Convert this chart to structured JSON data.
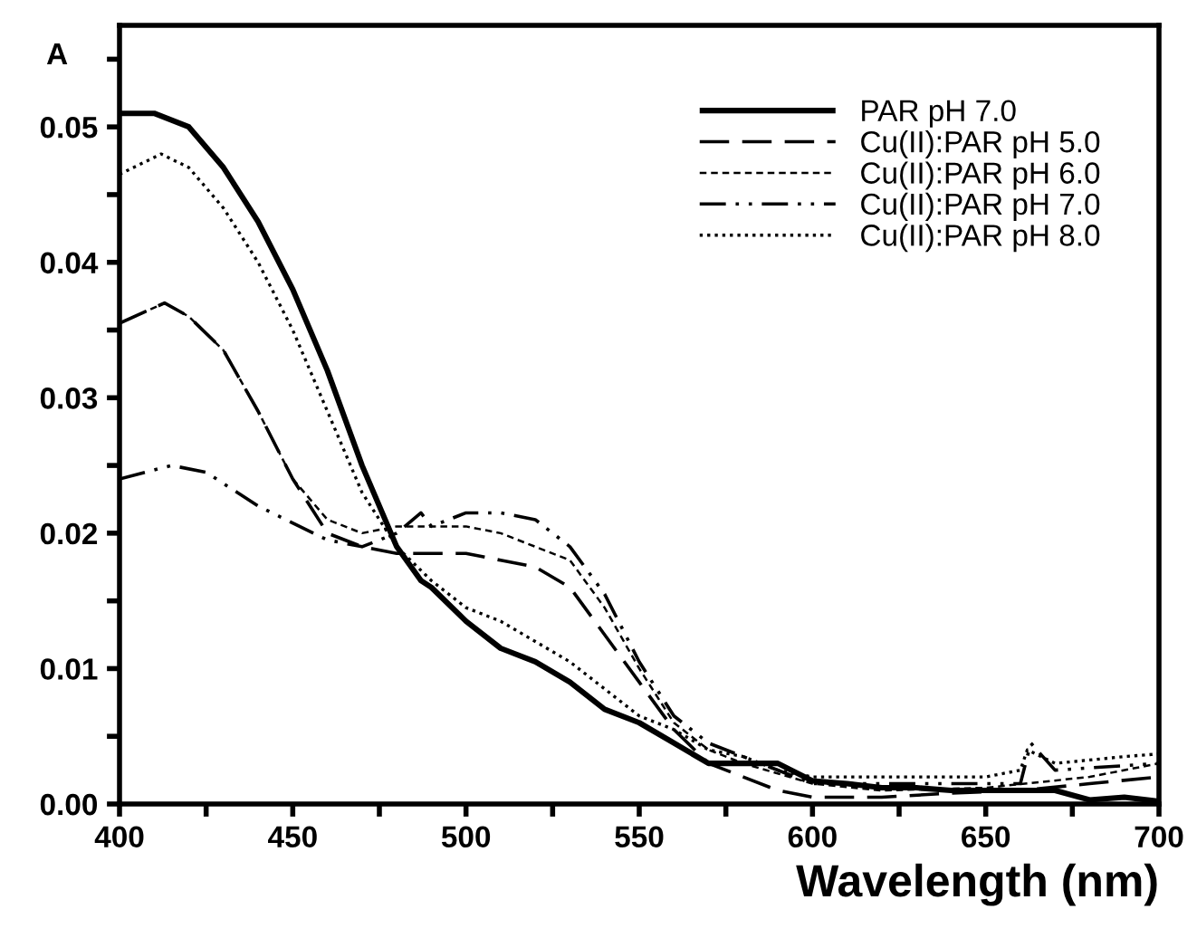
{
  "chart_data": {
    "type": "line",
    "xlabel": "Wavelength (nm)",
    "ylabel": "A",
    "xlim": [
      400,
      700
    ],
    "ylim": [
      0,
      0.0575
    ],
    "xticks": [
      400,
      {
        "value": 425,
        "label": null
      },
      450,
      {
        "value": 475,
        "label": null
      },
      500,
      {
        "value": 525,
        "label": null
      },
      550,
      {
        "value": 575,
        "label": null
      },
      600,
      {
        "value": 625,
        "label": null
      },
      650,
      {
        "value": 675,
        "label": null
      },
      700
    ],
    "yticks": [
      {
        "value": 0,
        "label": "0.00"
      },
      {
        "value": 0.005,
        "label": null
      },
      {
        "value": 0.01,
        "label": "0.01"
      },
      {
        "value": 0.015,
        "label": null
      },
      {
        "value": 0.02,
        "label": "0.02"
      },
      {
        "value": 0.025,
        "label": null
      },
      {
        "value": 0.03,
        "label": "0.03"
      },
      {
        "value": 0.035,
        "label": null
      },
      {
        "value": 0.04,
        "label": "0.04"
      },
      {
        "value": 0.045,
        "label": null
      },
      {
        "value": 0.05,
        "label": "0.05"
      },
      {
        "value": 0.055,
        "label": null
      }
    ],
    "grid": false,
    "legend": "top right",
    "marker": "none",
    "series": [
      {
        "name": "PAR pH 7.0",
        "color": "#000000",
        "line_style": "solid",
        "x": [
          400,
          410,
          420,
          430,
          440,
          450,
          460,
          470,
          480,
          487,
          490,
          500,
          510,
          520,
          530,
          540,
          550,
          560,
          570,
          580,
          590,
          600,
          610,
          620,
          630,
          640,
          650,
          660,
          670,
          680,
          690,
          700
        ],
        "values": [
          0.051,
          0.051,
          0.05,
          0.047,
          0.043,
          0.038,
          0.032,
          0.025,
          0.019,
          0.0165,
          0.016,
          0.0135,
          0.0115,
          0.0105,
          0.009,
          0.007,
          0.006,
          0.0045,
          0.003,
          0.003,
          0.003,
          0.0017,
          0.0015,
          0.0012,
          0.0012,
          0.001,
          0.001,
          0.001,
          0.001,
          0.0003,
          0.0005,
          0.0002
        ]
      },
      {
        "name": "Cu(II):PAR pH 5.0",
        "color": "#000000",
        "line_style": "long dashed",
        "x": [
          400,
          413,
          420,
          430,
          440,
          450,
          460,
          470,
          480,
          490,
          500,
          510,
          520,
          530,
          540,
          550,
          560,
          570,
          580,
          590,
          600,
          620,
          640,
          660,
          680,
          700
        ],
        "values": [
          0.0355,
          0.037,
          0.036,
          0.0335,
          0.029,
          0.024,
          0.02,
          0.019,
          0.0185,
          0.0185,
          0.0185,
          0.018,
          0.0175,
          0.016,
          0.0125,
          0.009,
          0.0055,
          0.003,
          0.002,
          0.001,
          0.0005,
          0.0005,
          0.0008,
          0.001,
          0.0015,
          0.002
        ]
      },
      {
        "name": "Cu(II):PAR pH 6.0",
        "color": "#000000",
        "line_style": "short dashed",
        "x": [
          400,
          413,
          420,
          430,
          440,
          450,
          460,
          470,
          480,
          490,
          500,
          510,
          520,
          530,
          540,
          550,
          560,
          570,
          580,
          600,
          620,
          650,
          680,
          700
        ],
        "values": [
          0.0355,
          0.037,
          0.036,
          0.0335,
          0.029,
          0.024,
          0.021,
          0.02,
          0.0205,
          0.0205,
          0.0205,
          0.02,
          0.019,
          0.018,
          0.0145,
          0.01,
          0.006,
          0.004,
          0.003,
          0.0015,
          0.001,
          0.0012,
          0.002,
          0.003
        ]
      },
      {
        "name": "Cu(II):PAR pH 7.0",
        "color": "#000000",
        "line_style": "dash dot dot",
        "x": [
          400,
          415,
          425,
          440,
          460,
          470,
          480,
          487,
          490,
          500,
          510,
          520,
          530,
          540,
          550,
          560,
          570,
          580,
          600,
          620,
          650,
          660,
          663,
          670,
          700
        ],
        "values": [
          0.024,
          0.025,
          0.0245,
          0.022,
          0.0195,
          0.019,
          0.02,
          0.0215,
          0.0205,
          0.0215,
          0.0215,
          0.021,
          0.019,
          0.0155,
          0.0105,
          0.0065,
          0.0045,
          0.0035,
          0.0015,
          0.0015,
          0.0015,
          0.0015,
          0.0045,
          0.0025,
          0.003
        ]
      },
      {
        "name": "Cu(II):PAR pH 8.0",
        "color": "#000000",
        "line_style": "dotted",
        "x": [
          400,
          412,
          420,
          430,
          440,
          450,
          460,
          470,
          480,
          490,
          500,
          510,
          520,
          530,
          540,
          550,
          560,
          570,
          580,
          590,
          600,
          620,
          640,
          650,
          660,
          662,
          670,
          690,
          700
        ],
        "values": [
          0.0465,
          0.048,
          0.047,
          0.044,
          0.04,
          0.035,
          0.029,
          0.023,
          0.019,
          0.0165,
          0.0145,
          0.0135,
          0.012,
          0.0105,
          0.0085,
          0.0065,
          0.0055,
          0.004,
          0.0035,
          0.0025,
          0.002,
          0.002,
          0.002,
          0.002,
          0.0025,
          0.004,
          0.003,
          0.0035,
          0.0037
        ]
      }
    ]
  }
}
